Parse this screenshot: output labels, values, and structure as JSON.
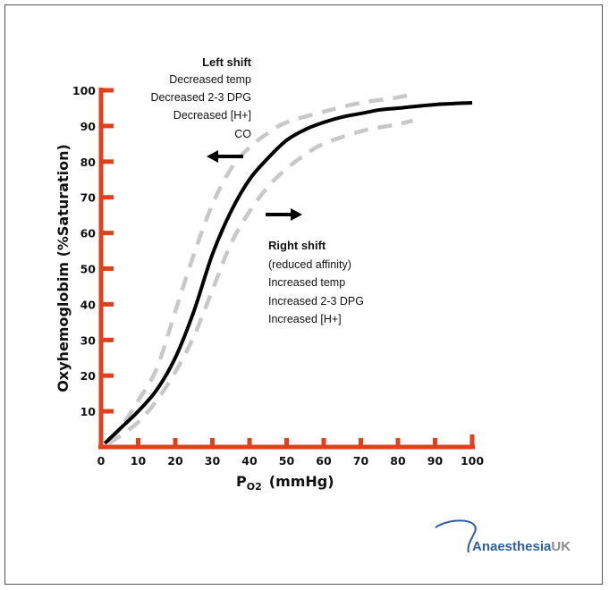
{
  "chart_data": {
    "type": "line",
    "title": "",
    "xlabel": "P",
    "xlabel_subscript": "O2",
    "xlabel_unit": "(mmHg)",
    "ylabel": "Oxyhemoglobim  (%Saturation)",
    "xlim": [
      0,
      100
    ],
    "ylim": [
      0,
      100
    ],
    "xticks": [
      0,
      10,
      20,
      30,
      40,
      50,
      60,
      70,
      80,
      90,
      100
    ],
    "yticks": [
      10,
      20,
      30,
      40,
      50,
      60,
      70,
      80,
      90,
      100
    ],
    "grid": false,
    "axis_color": "#e0401c",
    "series": [
      {
        "style": "solid",
        "color": "#000000",
        "x": [
          1,
          5,
          10,
          15,
          20,
          25,
          30,
          35,
          40,
          45,
          50,
          55,
          60,
          65,
          70,
          75,
          80,
          90,
          100
        ],
        "y": [
          1,
          5,
          10,
          16,
          25,
          38,
          54,
          66,
          75,
          81,
          86,
          89,
          91,
          92.5,
          93.5,
          94.5,
          95,
          96,
          96.5
        ]
      },
      {
        "style": "dashed",
        "color": "#c8c8c8",
        "x": [
          2,
          5,
          10,
          15,
          20,
          25,
          30,
          35,
          40,
          45,
          50,
          60,
          70,
          80,
          84
        ],
        "y": [
          2,
          5,
          13,
          22,
          38,
          54,
          68,
          78,
          84,
          88,
          91,
          94,
          96.5,
          98,
          99
        ]
      },
      {
        "style": "dashed",
        "color": "#c8c8c8",
        "x": [
          2,
          5,
          10,
          15,
          20,
          25,
          30,
          35,
          40,
          45,
          50,
          55,
          60,
          70,
          80,
          84
        ],
        "y": [
          1,
          3,
          7,
          13,
          21,
          31,
          44,
          57,
          66,
          73,
          78,
          82,
          85,
          88.5,
          90.5,
          91.5
        ]
      }
    ],
    "annotations": {
      "left_shift": {
        "title": "Left shift",
        "lines": [
          "Decreased temp",
          "Decreased 2-3 DPG",
          "Decreased [H+]",
          "CO"
        ],
        "arrow": "left"
      },
      "right_shift": {
        "title": "Right shift",
        "lines": [
          "(reduced affinity)",
          "Increased temp",
          "Increased 2-3 DPG",
          "Increased [H+]"
        ],
        "arrow": "right"
      }
    }
  },
  "logo": {
    "text_main": "Anaesthesia",
    "text_accent": "UK",
    "color_main": "#2f5f9e",
    "color_accent": "#8a8a8a"
  }
}
